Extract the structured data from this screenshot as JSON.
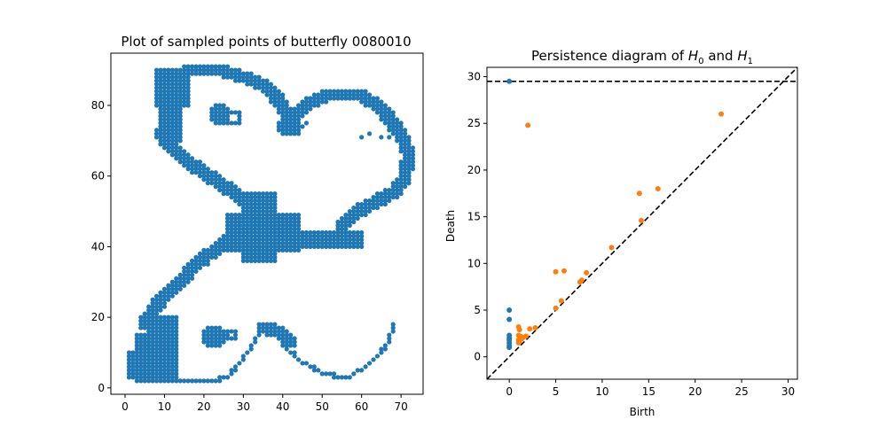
{
  "chart_data": [
    {
      "type": "scatter",
      "title": "Plot of sampled points of butterfly 0080010",
      "xlabel": "",
      "ylabel": "",
      "xlim": [
        -3.6,
        75.6
      ],
      "ylim": [
        -1.8,
        94.8
      ],
      "xticks": [
        0,
        10,
        20,
        30,
        40,
        50,
        60,
        70
      ],
      "yticks": [
        0,
        20,
        40,
        60,
        80
      ],
      "grid": false,
      "marker_color": "#1f77b4",
      "description_of_shape": "dense blue point cloud outlining a butterfly wing contour",
      "regions": [
        {
          "name": "top-left wing blob",
          "x": [
            8,
            16
          ],
          "y": [
            68,
            91
          ]
        },
        {
          "name": "top arc",
          "x": [
            12,
            40
          ],
          "y": [
            72,
            91
          ]
        },
        {
          "name": "small oval",
          "x": [
            21,
            27
          ],
          "y": [
            74,
            81
          ]
        },
        {
          "name": "right lobe",
          "x": [
            40,
            72
          ],
          "y": [
            44,
            84
          ]
        },
        {
          "name": "middle body",
          "x": [
            28,
            62
          ],
          "y": [
            35,
            56
          ]
        },
        {
          "name": "lower-left wing",
          "x": [
            1,
            14
          ],
          "y": [
            1,
            26
          ]
        },
        {
          "name": "bottom arc",
          "x": [
            14,
            68
          ],
          "y": [
            2,
            20
          ]
        },
        {
          "name": "small lower oval",
          "x": [
            19,
            26
          ],
          "y": [
            11,
            18
          ]
        }
      ]
    },
    {
      "type": "scatter",
      "title": "Persistence diagram of H0 and H1",
      "title_main": "Persistence diagram of ",
      "title_h0": "H",
      "title_h0_sub": "0",
      "title_and": " and ",
      "title_h1": "H",
      "title_h1_sub": "1",
      "xlabel": "Birth",
      "ylabel": "Death",
      "xlim": [
        -2.4,
        31.0
      ],
      "ylim": [
        -2.4,
        31.0
      ],
      "xticks": [
        0,
        5,
        10,
        15,
        20,
        25,
        30
      ],
      "yticks": [
        0,
        5,
        10,
        15,
        20,
        25,
        30
      ],
      "infinity_line": 29.5,
      "diagonal": true,
      "series": [
        {
          "name": "H0",
          "color": "#1f77b4",
          "points": [
            [
              0,
              29.5
            ],
            [
              0,
              5.0
            ],
            [
              0,
              4.0
            ],
            [
              0,
              2.3
            ],
            [
              0,
              2.0
            ],
            [
              0,
              1.8
            ],
            [
              0,
              1.5
            ],
            [
              0,
              1.2
            ],
            [
              0,
              1.0
            ]
          ]
        },
        {
          "name": "H1",
          "color": "#ff7f0e",
          "points": [
            [
              2.0,
              24.8
            ],
            [
              22.8,
              26.0
            ],
            [
              14.0,
              17.5
            ],
            [
              16.0,
              18.0
            ],
            [
              14.2,
              14.6
            ],
            [
              11.0,
              11.7
            ],
            [
              5.0,
              9.1
            ],
            [
              5.9,
              9.2
            ],
            [
              8.3,
              9.0
            ],
            [
              7.6,
              8.0
            ],
            [
              7.8,
              8.2
            ],
            [
              5.6,
              6.0
            ],
            [
              5.0,
              5.2
            ],
            [
              1.0,
              3.2
            ],
            [
              1.1,
              2.9
            ],
            [
              2.2,
              3.0
            ],
            [
              2.8,
              3.1
            ],
            [
              1.0,
              2.3
            ],
            [
              1.2,
              2.2
            ],
            [
              1.5,
              2.1
            ],
            [
              1.8,
              2.2
            ],
            [
              1.0,
              1.8
            ],
            [
              1.3,
              1.9
            ],
            [
              1.0,
              1.5
            ],
            [
              1.1,
              1.6
            ]
          ]
        }
      ]
    }
  ]
}
